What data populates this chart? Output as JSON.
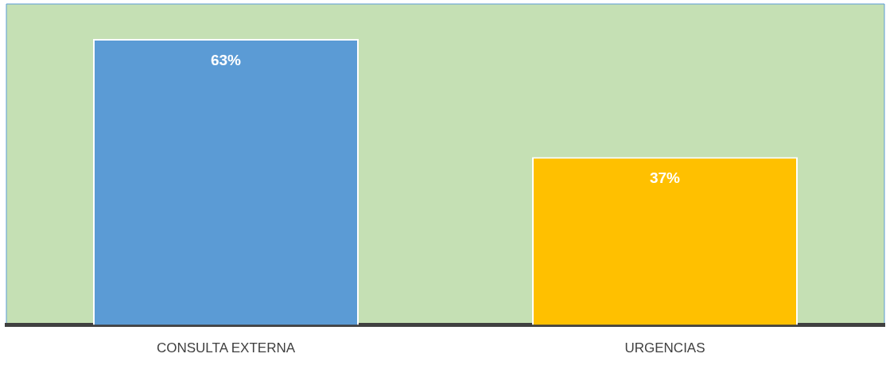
{
  "chart_data": {
    "type": "bar",
    "categories": [
      "CONSULTA EXTERNA",
      "URGENCIAS"
    ],
    "values": [
      63,
      37
    ],
    "colors": [
      "#5b9bd5",
      "#ffc000"
    ],
    "value_labels": [
      "63%",
      "37%"
    ],
    "tick_labels": "x",
    "grid": false,
    "legend": false
  }
}
